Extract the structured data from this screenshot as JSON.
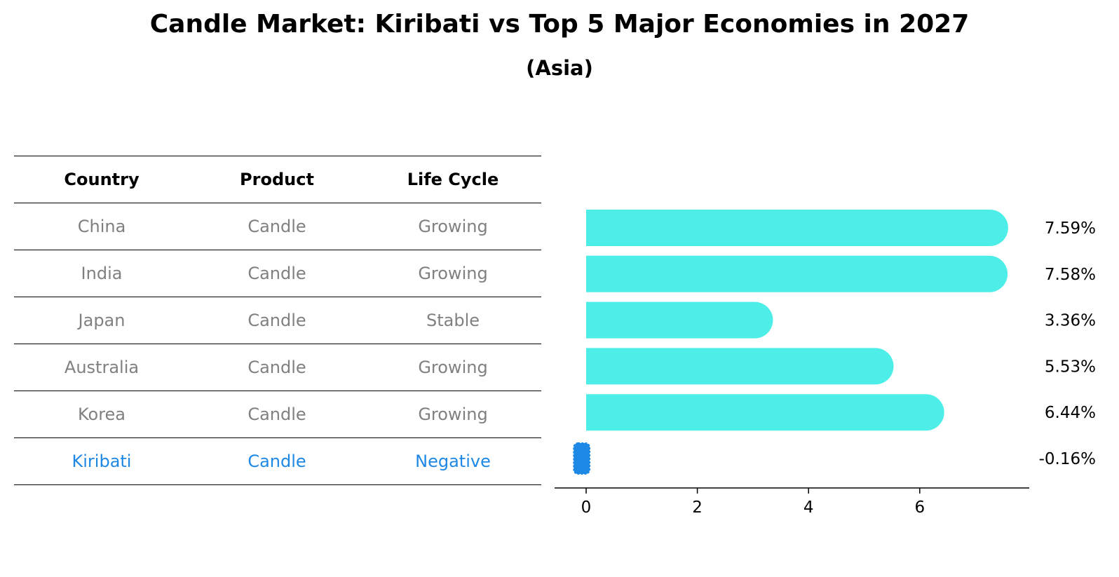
{
  "chart_data": {
    "type": "bar",
    "title": "Candle Market: Kiribati vs Top 5 Major Economies in 2027",
    "subtitle": "(Asia)",
    "categories": [
      "China",
      "India",
      "Japan",
      "Australia",
      "Korea",
      "Kiribati"
    ],
    "values": [
      7.59,
      7.58,
      3.36,
      5.53,
      6.44,
      -0.16
    ],
    "value_labels": [
      "7.59%",
      "7.58%",
      "3.36%",
      "5.53%",
      "6.44%",
      "-0.16%"
    ],
    "x_ticks": [
      "0",
      "2",
      "4",
      "6"
    ],
    "xlim": [
      -0.55,
      7.95
    ],
    "bar_color": "#4deee8",
    "highlight_color": "#1e88e5",
    "table": {
      "headers": [
        "Country",
        "Product",
        "Life Cycle"
      ],
      "rows": [
        [
          "China",
          "Candle",
          "Growing"
        ],
        [
          "India",
          "Candle",
          "Growing"
        ],
        [
          "Japan",
          "Candle",
          "Stable"
        ],
        [
          "Australia",
          "Candle",
          "Growing"
        ],
        [
          "Korea",
          "Candle",
          "Growing"
        ],
        [
          "Kiribati",
          "Candle",
          "Negative"
        ]
      ],
      "highlight_row": 5
    }
  }
}
